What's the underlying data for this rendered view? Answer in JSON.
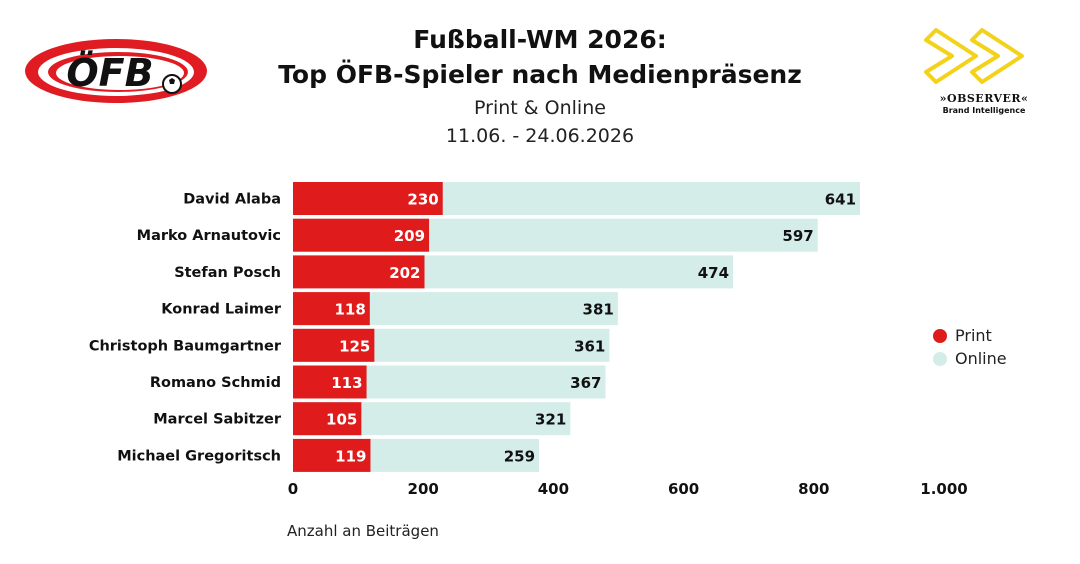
{
  "title": {
    "line1": "Fußball-WM 2026:",
    "line2": "Top ÖFB-Spieler nach Medienpräsenz",
    "subtitle": "Print & Online",
    "date_range": "11.06. - 24.06.2026"
  },
  "logos": {
    "left": {
      "text": "ÖFB",
      "icon": "oefb-logo",
      "color": "#e01b22"
    },
    "right": {
      "text": "»OBSERVER«",
      "subtext": "Brand Intelligence",
      "icon": "observer-chevrons-logo",
      "color": "#f2d21b"
    }
  },
  "chart_data": {
    "type": "bar",
    "orientation": "horizontal",
    "stacked": true,
    "categories": [
      "David Alaba",
      "Marko Arnautovic",
      "Stefan Posch",
      "Konrad Laimer",
      "Christoph Baumgartner",
      "Romano Schmid",
      "Marcel Sabitzer",
      "Michael Gregoritsch"
    ],
    "series": [
      {
        "name": "Print",
        "color": "#e01b1b",
        "values": [
          230,
          209,
          202,
          118,
          125,
          113,
          105,
          119
        ]
      },
      {
        "name": "Online",
        "color": "#d4ede8",
        "values": [
          641,
          597,
          474,
          381,
          361,
          367,
          321,
          259
        ]
      }
    ],
    "xlabel": "Anzahl an Beiträgen",
    "ylabel": "",
    "xlim": [
      0,
      1000
    ],
    "xticks": [
      0,
      200,
      400,
      600,
      800,
      1000
    ],
    "xtick_labels": [
      "0",
      "200",
      "400",
      "600",
      "800",
      "1.000"
    ],
    "grid": false,
    "legend_position": "right"
  }
}
